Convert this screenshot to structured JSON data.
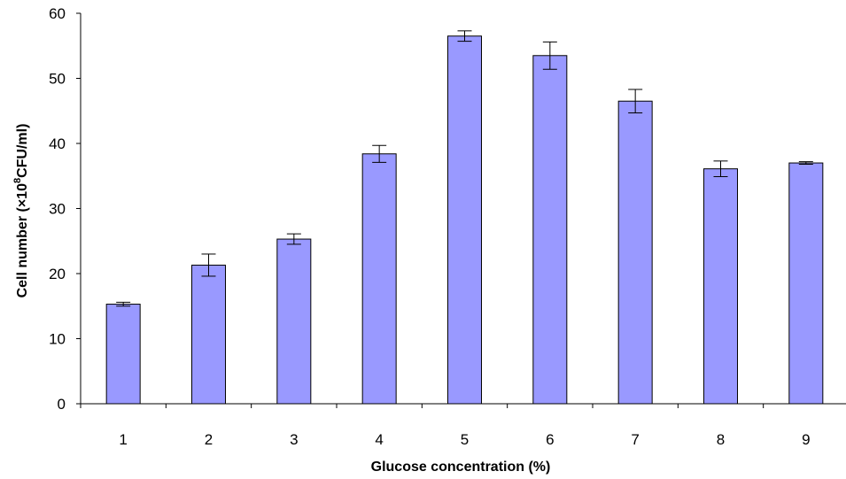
{
  "chart_data": {
    "type": "bar",
    "title": "",
    "xlabel": "Glucose concentration (%)",
    "ylabel": {
      "prefix": "Cell number (×10",
      "superscript": "8",
      "suffix": "CFU/ml)"
    },
    "categories": [
      "1",
      "2",
      "3",
      "4",
      "5",
      "6",
      "7",
      "8",
      "9"
    ],
    "values": [
      15.3,
      21.3,
      25.3,
      38.4,
      56.5,
      53.5,
      46.5,
      36.1,
      37.0
    ],
    "errors": [
      0.3,
      1.7,
      0.8,
      1.3,
      0.8,
      2.1,
      1.8,
      1.2,
      0.2
    ],
    "ylim": [
      0,
      60
    ],
    "yticks": [
      0,
      10,
      20,
      30,
      40,
      50,
      60
    ],
    "grid": false,
    "legend": "none",
    "bar_color": "#9999ff",
    "bar_edge_color": "#000000"
  }
}
